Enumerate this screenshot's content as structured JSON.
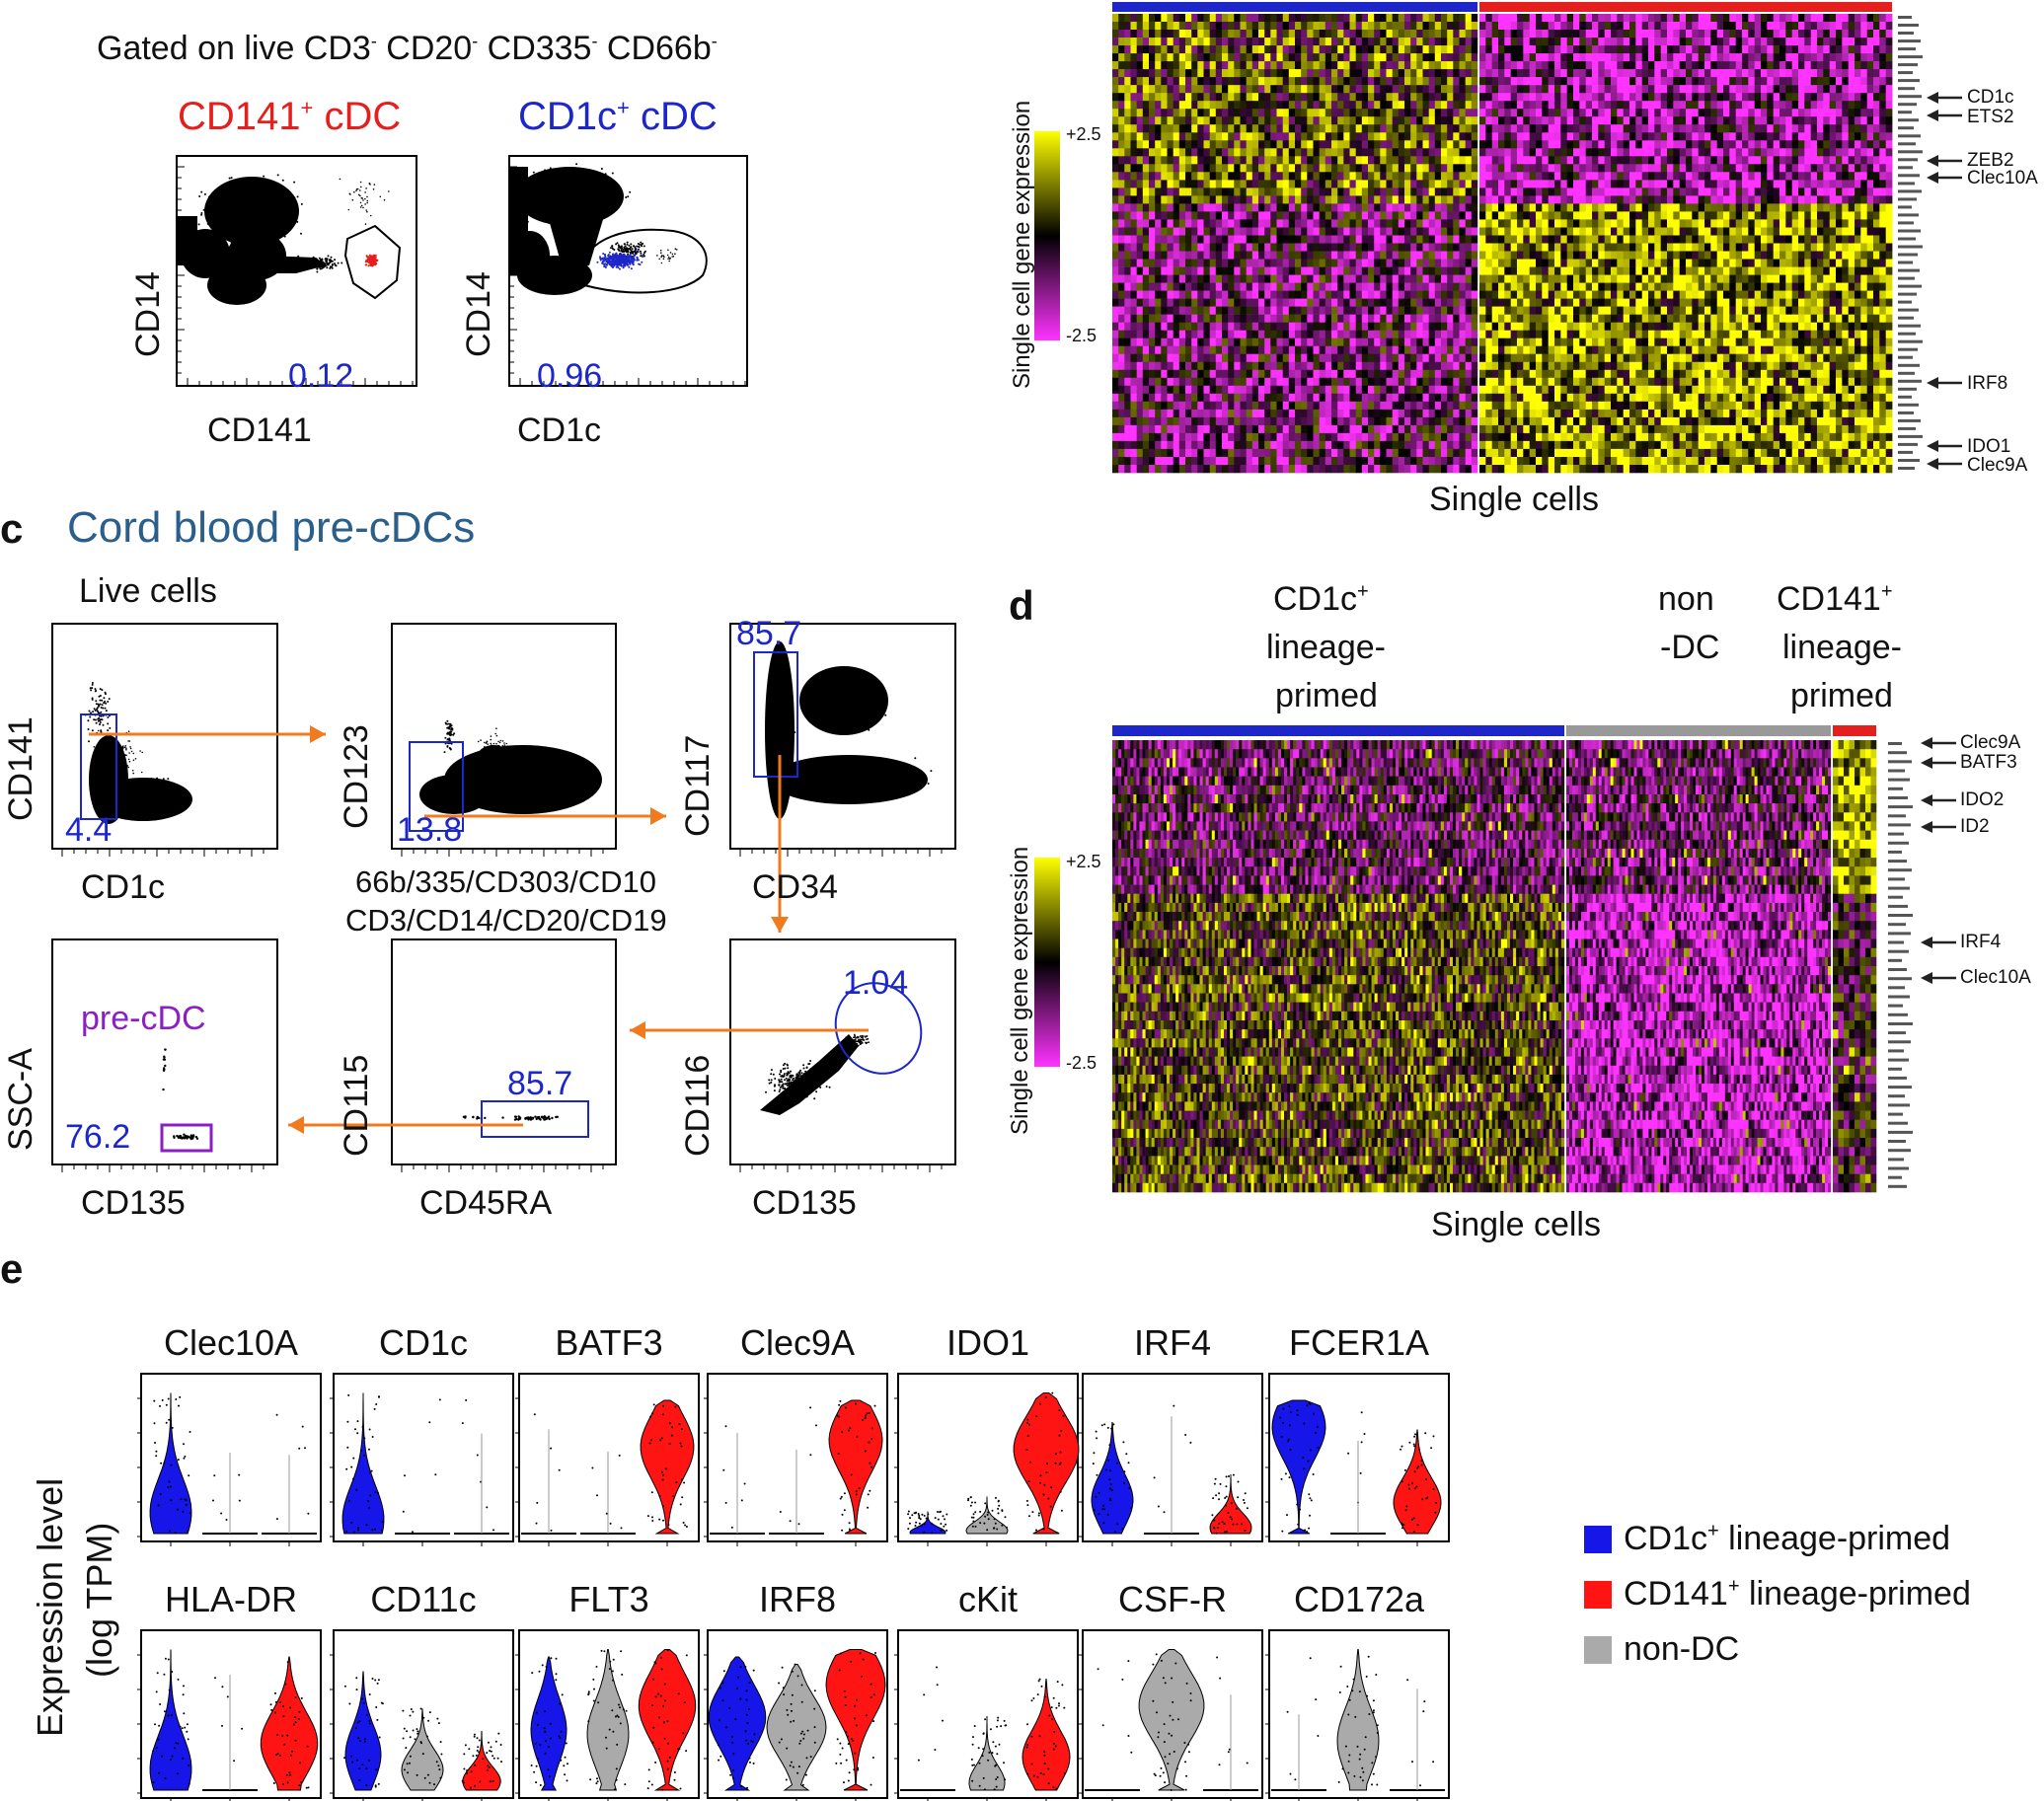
{
  "panel_a": {
    "gate_title_parts": [
      "Gated on live CD3",
      "-",
      " CD20",
      "-",
      " CD335",
      "-",
      " CD66b",
      "-"
    ],
    "plot1": {
      "title": "CD141",
      "title_sup": "+",
      "title_suffix": " cDC",
      "xlabel": "CD141",
      "ylabel": "CD14",
      "value": "0.12",
      "tick": "0"
    },
    "plot2": {
      "title": "CD1c",
      "title_sup": "+",
      "title_suffix": " cDC",
      "xlabel": "CD1c",
      "ylabel": "CD14",
      "value": "0.96",
      "tick": "0"
    }
  },
  "panel_b": {
    "colorbar_label": "Single cell gene expression",
    "colorbar_max": "+2.5",
    "colorbar_min": "-2.5",
    "xlabel": "Single cells",
    "callouts": [
      "CD1c",
      "ETS2",
      "ZEB2",
      "Clec10A",
      "IRF8",
      "IDO1",
      "Clec9A"
    ],
    "colors": {
      "high": "#ffff00",
      "mid": "#000000",
      "low": "#ff33ff",
      "group1": "#1d27c9",
      "group2": "#e51e1e"
    }
  },
  "panel_c": {
    "letter": "c",
    "title": "Cord blood pre-cDCs",
    "live_cells": "Live cells",
    "p1": {
      "xlabel": "CD1c",
      "ylabel": "CD141",
      "value": "4.4"
    },
    "p2": {
      "xlabel_line1": "66b/335/CD303/CD10",
      "xlabel_line2": "CD3/CD14/CD20/CD19",
      "ylabel": "CD123",
      "value": "13.8"
    },
    "p3": {
      "xlabel": "CD34",
      "ylabel": "CD117",
      "value": "85.7"
    },
    "p4": {
      "xlabel": "CD135",
      "ylabel": "CD116",
      "value": "1.04"
    },
    "p5": {
      "xlabel": "CD45RA",
      "ylabel": "CD115",
      "value": "85.7"
    },
    "p6": {
      "xlabel": "CD135",
      "ylabel": "SSC-A",
      "value": "76.2",
      "gate_label": "pre-cDC"
    },
    "tick": "0",
    "arrow_color": "#f07a1e"
  },
  "panel_d": {
    "letter": "d",
    "group1": [
      "CD1c",
      "lineage-",
      "primed"
    ],
    "group1_sup": "+",
    "group2": [
      "non",
      "-DC"
    ],
    "group3": [
      "CD141",
      "lineage-",
      "primed"
    ],
    "group3_sup": "+",
    "colorbar_label": "Single cell gene expression",
    "colorbar_max": "+2.5",
    "colorbar_min": "-2.5",
    "xlabel": "Single cells",
    "callouts": [
      "Clec9A",
      "BATF3",
      "IDO2",
      "ID2",
      "IRF4",
      "Clec10A"
    ],
    "group_colors": [
      "#1d27c9",
      "#999999",
      "#e51e1e"
    ]
  },
  "panel_e": {
    "letter": "e",
    "ylabel_line1": "Expression level",
    "ylabel_line2": "(log TPM)",
    "row1": [
      "Clec10A",
      "CD1c",
      "BATF3",
      "Clec9A",
      "IDO1",
      "IRF4",
      "FCER1A"
    ],
    "row2": [
      "HLA-DR",
      "CD11c",
      "FLT3",
      "IRF8",
      "cKit",
      "CSF-R",
      "CD172a"
    ],
    "legend": [
      {
        "label": "CD1c",
        "sup": "+",
        "suffix": " lineage-primed",
        "color": "#1616e8"
      },
      {
        "label": "CD141",
        "sup": "+",
        "suffix": " lineage-primed",
        "color": "#ff1414"
      },
      {
        "label": "non-DC",
        "sup": "",
        "suffix": "",
        "color": "#aaaaaa"
      }
    ]
  }
}
